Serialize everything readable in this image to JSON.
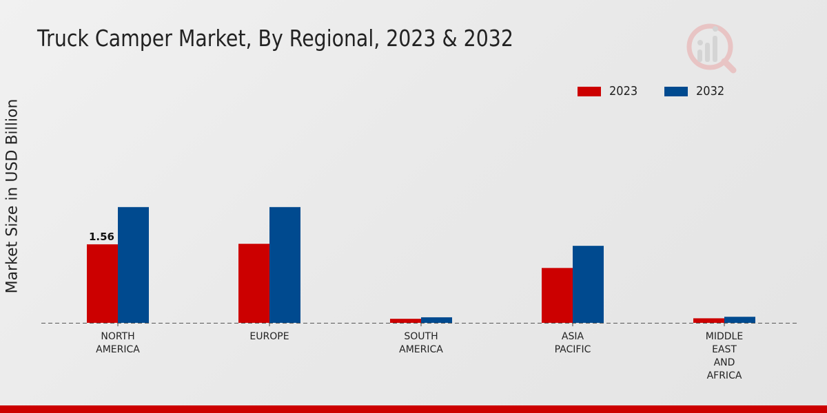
{
  "title": "Truck Camper Market, By Regional, 2023 & 2032",
  "chart_data": {
    "type": "bar",
    "title": "Truck Camper Market, By Regional, 2023 & 2032",
    "xlabel": "",
    "ylabel": "Market Size in USD Billion",
    "categories": [
      [
        "NORTH",
        "AMERICA"
      ],
      [
        "EUROPE"
      ],
      [
        "SOUTH",
        "AMERICA"
      ],
      [
        "ASIA",
        "PACIFIC"
      ],
      [
        "MIDDLE",
        "EAST",
        "AND",
        "AFRICA"
      ]
    ],
    "series": [
      {
        "name": "2023",
        "color": "#cc0000",
        "values": [
          1.56,
          1.57,
          0.08,
          1.09,
          0.09
        ]
      },
      {
        "name": "2032",
        "color": "#004a8f",
        "values": [
          2.3,
          2.3,
          0.11,
          1.53,
          0.12
        ]
      }
    ],
    "data_labels": [
      {
        "series": 0,
        "index": 0,
        "text": "1.56"
      }
    ],
    "ylim": [
      0,
      4.5
    ],
    "legend_position": "top-right",
    "grid": false
  }
}
